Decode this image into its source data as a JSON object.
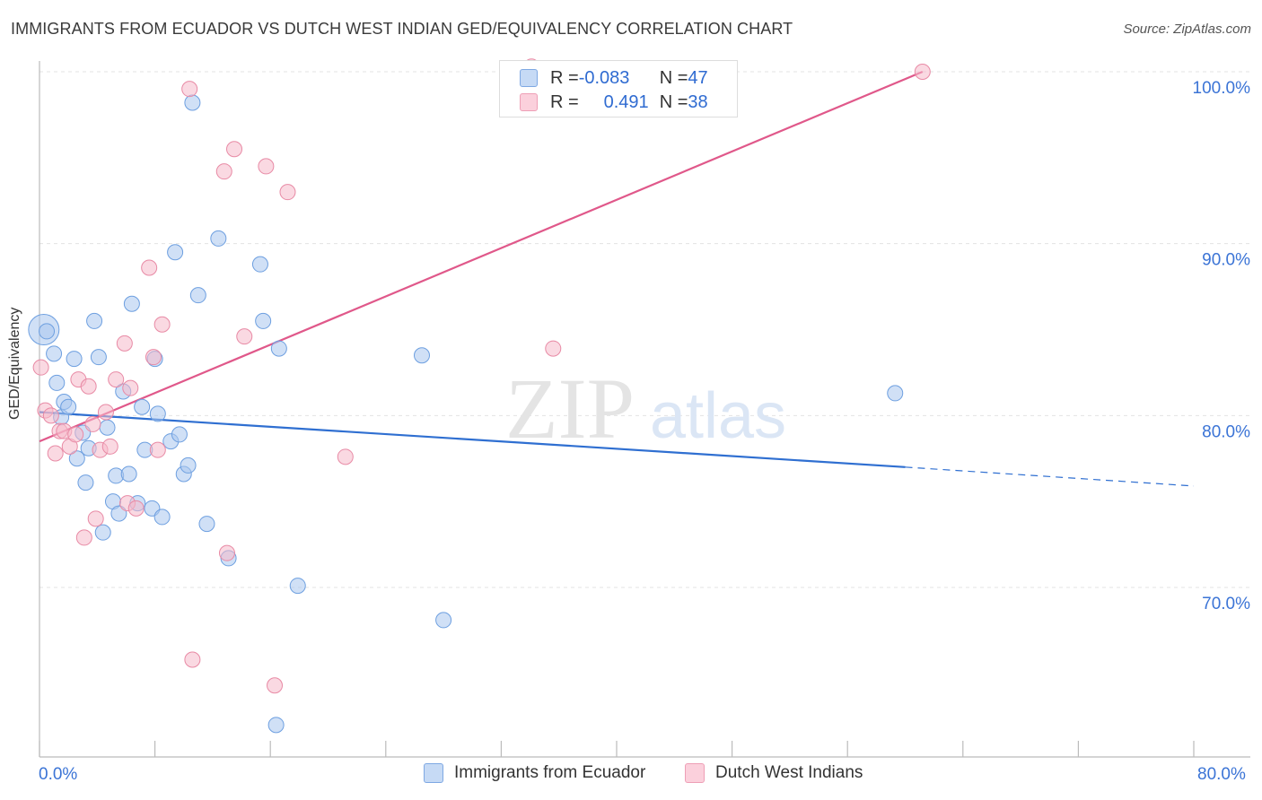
{
  "header": {
    "title": "IMMIGRANTS FROM ECUADOR VS DUTCH WEST INDIAN GED/EQUIVALENCY CORRELATION CHART",
    "source": "Source: ZipAtlas.com"
  },
  "watermark": {
    "zip": "ZIP",
    "atlas": "atlas"
  },
  "legend": {
    "rows": [
      {
        "r_label": "R = ",
        "r_value": "-0.083",
        "n_label": "N = ",
        "n_value": "47",
        "color": "#a9c6ef"
      },
      {
        "r_label": "R = ",
        "r_value": "0.491",
        "n_label": "N = ",
        "n_value": "38",
        "color": "#f6b9cb"
      }
    ]
  },
  "chart_data": {
    "type": "scatter",
    "xlabel": "",
    "ylabel": "GED/Equivalency",
    "xlim": [
      0,
      80
    ],
    "ylim": [
      62,
      101
    ],
    "x_tick_labels": [
      "0.0%",
      "80.0%"
    ],
    "y_ticks": [
      70,
      80,
      90,
      100
    ],
    "y_tick_labels": [
      "70.0%",
      "80.0%",
      "90.0%",
      "100.0%"
    ],
    "grid": true,
    "legend_position": "bottom",
    "series": [
      {
        "name": "Immigrants from Ecuador",
        "color": "#a9c6ef",
        "stroke": "#6d9fe0",
        "trend": {
          "x0": 0,
          "y0": 80.2,
          "x1": 60,
          "y1": 77.0,
          "dashed_to_x": 80,
          "dashed_to_y": 75.9,
          "color": "#2f6fd1"
        },
        "points": [
          [
            0.3,
            85.0,
            30
          ],
          [
            0.5,
            84.9,
            10
          ],
          [
            1.0,
            83.6,
            10
          ],
          [
            1.2,
            81.9,
            10
          ],
          [
            1.5,
            79.9,
            10
          ],
          [
            1.7,
            80.8,
            10
          ],
          [
            2.0,
            80.5,
            10
          ],
          [
            2.4,
            83.3,
            10
          ],
          [
            2.6,
            77.5,
            10
          ],
          [
            3.0,
            79.0,
            10
          ],
          [
            3.2,
            76.1,
            10
          ],
          [
            3.4,
            78.1,
            10
          ],
          [
            3.8,
            85.5,
            10
          ],
          [
            4.1,
            83.4,
            10
          ],
          [
            4.4,
            73.2,
            10
          ],
          [
            4.7,
            79.3,
            10
          ],
          [
            5.1,
            75.0,
            10
          ],
          [
            5.3,
            76.5,
            10
          ],
          [
            5.5,
            74.3,
            10
          ],
          [
            5.8,
            81.4,
            10
          ],
          [
            6.2,
            76.6,
            10
          ],
          [
            6.4,
            86.5,
            10
          ],
          [
            6.8,
            74.9,
            10
          ],
          [
            7.1,
            80.5,
            10
          ],
          [
            7.3,
            78.0,
            10
          ],
          [
            7.8,
            74.6,
            10
          ],
          [
            8.0,
            83.3,
            10
          ],
          [
            8.2,
            80.1,
            10
          ],
          [
            8.5,
            74.1,
            10
          ],
          [
            9.1,
            78.5,
            10
          ],
          [
            9.4,
            89.5,
            10
          ],
          [
            9.7,
            78.9,
            10
          ],
          [
            10.0,
            76.6,
            10
          ],
          [
            10.3,
            77.1,
            10
          ],
          [
            10.6,
            98.2,
            10
          ],
          [
            11.0,
            87.0,
            10
          ],
          [
            11.6,
            73.7,
            10
          ],
          [
            12.4,
            90.3,
            10
          ],
          [
            13.1,
            71.7,
            10
          ],
          [
            15.3,
            88.8,
            10
          ],
          [
            15.5,
            85.5,
            10
          ],
          [
            16.4,
            62.0,
            10
          ],
          [
            16.6,
            83.9,
            10
          ],
          [
            17.9,
            70.1,
            10
          ],
          [
            26.5,
            83.5,
            10
          ],
          [
            28.0,
            68.1,
            10
          ],
          [
            59.3,
            81.3,
            10
          ]
        ]
      },
      {
        "name": "Dutch West Indians",
        "color": "#f6b9cb",
        "stroke": "#e88aa5",
        "trend": {
          "x0": 0,
          "y0": 78.5,
          "x1": 61.2,
          "y1": 100.0,
          "color": "#e0588a"
        },
        "points": [
          [
            0.1,
            82.8,
            12
          ],
          [
            0.4,
            80.3,
            10
          ],
          [
            0.8,
            80.0,
            10
          ],
          [
            1.1,
            77.8,
            10
          ],
          [
            1.4,
            79.1,
            10
          ],
          [
            1.7,
            79.1,
            10
          ],
          [
            2.1,
            78.2,
            10
          ],
          [
            2.5,
            78.9,
            10
          ],
          [
            2.7,
            82.1,
            10
          ],
          [
            3.1,
            72.9,
            10
          ],
          [
            3.4,
            81.7,
            10
          ],
          [
            3.7,
            79.5,
            10
          ],
          [
            3.9,
            74.0,
            10
          ],
          [
            4.2,
            78.0,
            10
          ],
          [
            4.6,
            80.2,
            10
          ],
          [
            4.9,
            78.2,
            10
          ],
          [
            5.3,
            82.1,
            10
          ],
          [
            5.9,
            84.2,
            10
          ],
          [
            6.1,
            74.9,
            10
          ],
          [
            6.3,
            81.6,
            10
          ],
          [
            6.7,
            74.6,
            10
          ],
          [
            7.6,
            88.6,
            10
          ],
          [
            7.9,
            83.4,
            10
          ],
          [
            8.2,
            78.0,
            10
          ],
          [
            8.5,
            85.3,
            10
          ],
          [
            10.4,
            99.0,
            10
          ],
          [
            10.6,
            65.8,
            10
          ],
          [
            12.8,
            94.2,
            10
          ],
          [
            13.0,
            72.0,
            10
          ],
          [
            13.5,
            95.5,
            10
          ],
          [
            14.2,
            84.6,
            10
          ],
          [
            15.7,
            94.5,
            10
          ],
          [
            16.3,
            64.3,
            10
          ],
          [
            17.2,
            93.0,
            10
          ],
          [
            21.2,
            77.6,
            10
          ],
          [
            34.1,
            100.3,
            10
          ],
          [
            35.6,
            83.9,
            10
          ],
          [
            61.2,
            100.0,
            10
          ]
        ]
      }
    ]
  }
}
